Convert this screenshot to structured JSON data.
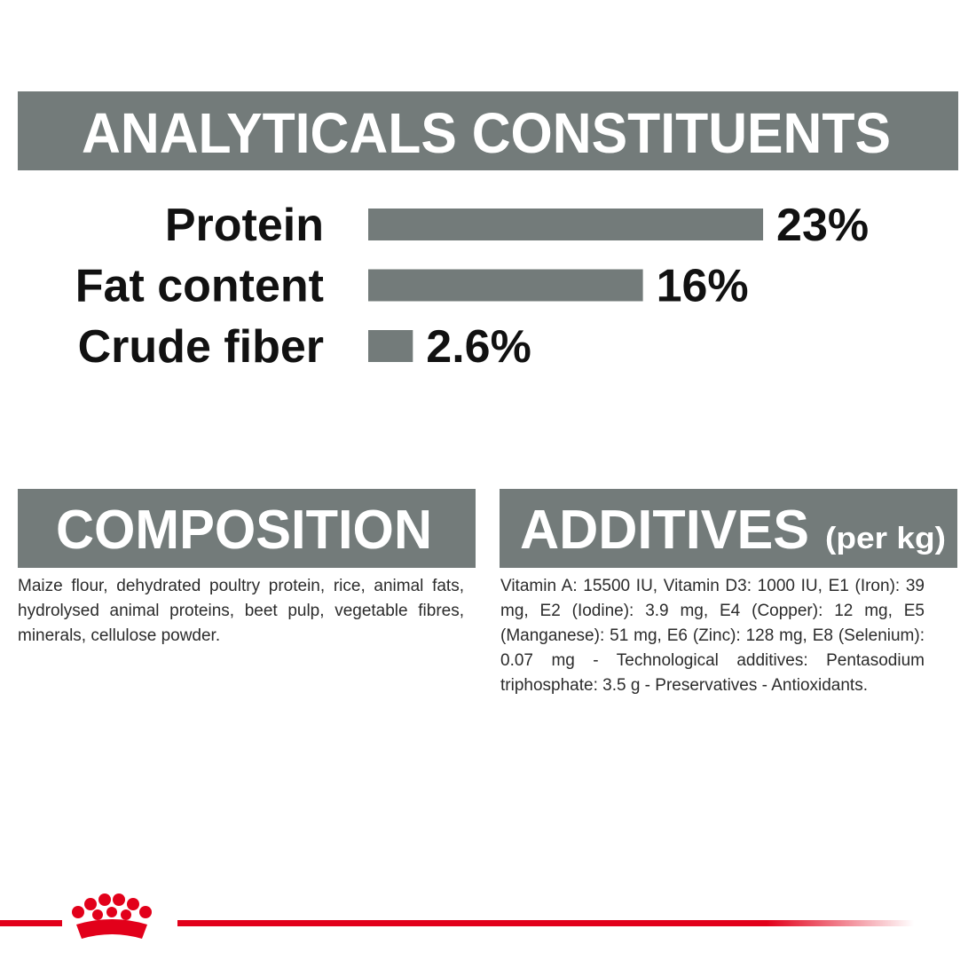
{
  "chart_data": {
    "type": "bar",
    "orientation": "horizontal",
    "title": "ANALYTICALS CONSTITUENTS",
    "categories": [
      "Protein",
      "Fat content",
      "Crude fiber"
    ],
    "values": [
      23,
      16,
      2.6
    ],
    "value_labels": [
      "23%",
      "16%",
      "2.6%"
    ],
    "color": "#737b7a"
  },
  "composition": {
    "title": "COMPOSITION",
    "text": "Maize flour, dehydrated poultry protein, rice, animal fats, hydrolysed animal proteins, beet pulp, vegetable fibres, minerals, cellulose powder."
  },
  "additives": {
    "title": "ADDITIVES",
    "unit": "(per kg)",
    "text": "Vitamin A: 15500 IU, Vitamin D3: 1000 IU, E1 (Iron): 39 mg, E2 (Iodine): 3.9 mg, E4 (Copper): 12 mg, E5 (Manganese): 51 mg, E6 (Zinc): 128 mg, E8 (Selenium): 0.07 mg - Technological additives: Pentasodium triphosphate: 3.5 g - Preservatives - Antioxidants."
  }
}
